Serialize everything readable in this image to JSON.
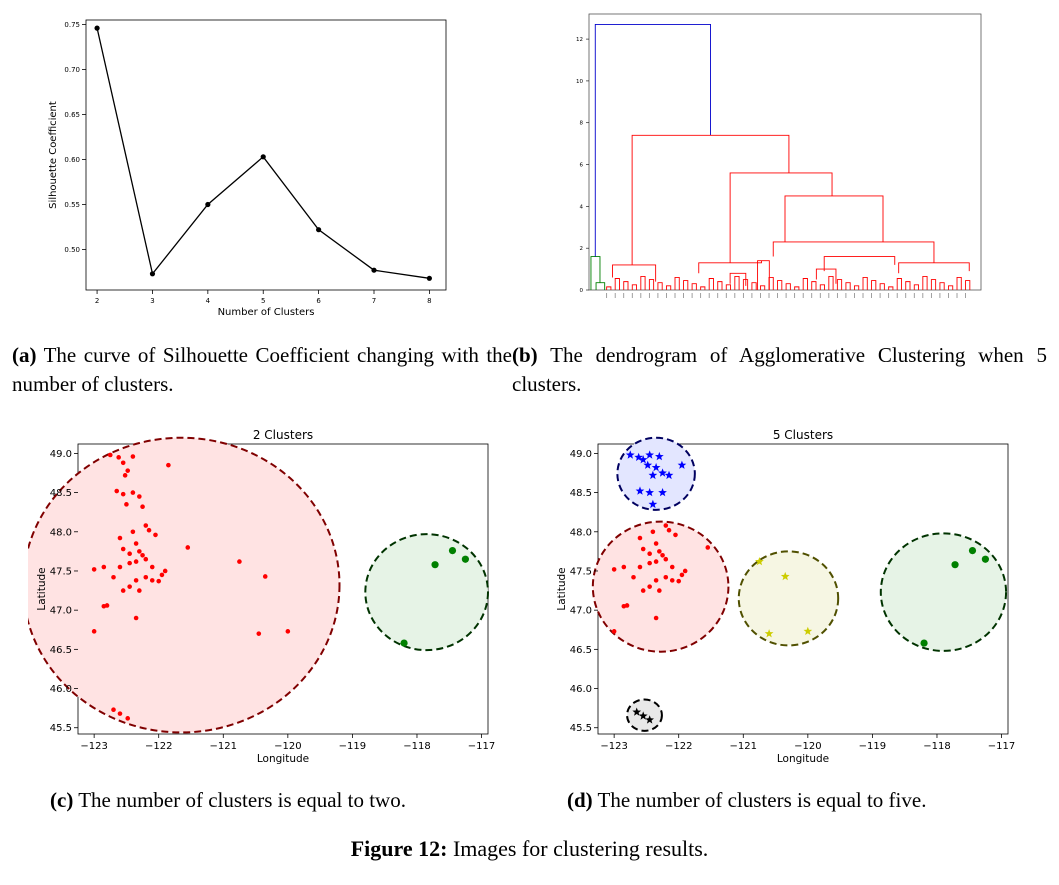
{
  "panel_a": {
    "chart_data": {
      "type": "line",
      "x": [
        2,
        3,
        4,
        5,
        6,
        7,
        8
      ],
      "values": [
        0.746,
        0.473,
        0.55,
        0.603,
        0.522,
        0.477,
        0.468
      ],
      "xlabel": "Number of Clusters",
      "ylabel": "Silhouette Coefficient",
      "xticks": [
        "2",
        "3",
        "4",
        "5",
        "6",
        "7",
        "8"
      ],
      "yticks": [
        "0.50",
        "0.55",
        "0.60",
        "0.65",
        "0.70",
        "0.75"
      ],
      "xlim": [
        1.8,
        8.3
      ],
      "ylim": [
        0.455,
        0.755
      ],
      "line_color": "#000000"
    }
  },
  "panel_b": {
    "chart_data": {
      "type": "dendrogram",
      "yticks": [
        "0",
        "2",
        "4",
        "6",
        "8",
        "10",
        "12"
      ],
      "ylim": [
        0,
        13.2
      ],
      "root_height": 12.7,
      "merge_heights": [
        12.7,
        7.4,
        5.6,
        4.5,
        2.3,
        1.6,
        1.3,
        1.2
      ],
      "colors": {
        "root": "#0000cc",
        "small_cluster": "#008000",
        "main_cluster": "#ff0000"
      }
    }
  },
  "panel_c": {
    "chart_data": {
      "type": "scatter",
      "title": "2 Clusters",
      "xlabel": "Longitude",
      "ylabel": "Latitude",
      "xticks": [
        "−123",
        "−122",
        "−121",
        "−120",
        "−119",
        "−118",
        "−117"
      ],
      "yticks": [
        "45.5",
        "46.0",
        "46.5",
        "47.0",
        "47.5",
        "48.0",
        "48.5",
        "49.0"
      ],
      "xlim": [
        -123.25,
        -116.9
      ],
      "ylim": [
        45.42,
        49.12
      ],
      "series": [
        {
          "color": "#ff0000",
          "marker": "dot",
          "points": [
            [
              -122.75,
              48.98
            ],
            [
              -122.62,
              48.95
            ],
            [
              -122.55,
              48.88
            ],
            [
              -122.48,
              48.78
            ],
            [
              -122.52,
              48.72
            ],
            [
              -122.4,
              48.96
            ],
            [
              -121.85,
              48.85
            ],
            [
              -122.65,
              48.52
            ],
            [
              -122.55,
              48.48
            ],
            [
              -122.4,
              48.5
            ],
            [
              -122.3,
              48.45
            ],
            [
              -122.5,
              48.35
            ],
            [
              -122.25,
              48.32
            ],
            [
              -122.2,
              48.08
            ],
            [
              -122.15,
              48.02
            ],
            [
              -122.4,
              48.0
            ],
            [
              -122.6,
              47.92
            ],
            [
              -122.05,
              47.96
            ],
            [
              -122.35,
              47.85
            ],
            [
              -122.55,
              47.78
            ],
            [
              -122.45,
              47.72
            ],
            [
              -122.3,
              47.75
            ],
            [
              -122.25,
              47.7
            ],
            [
              -122.2,
              47.65
            ],
            [
              -122.35,
              47.62
            ],
            [
              -122.45,
              47.6
            ],
            [
              -122.6,
              47.55
            ],
            [
              -122.1,
              47.55
            ],
            [
              -121.9,
              47.5
            ],
            [
              -121.55,
              47.8
            ],
            [
              -121.95,
              47.45
            ],
            [
              -122.1,
              47.38
            ],
            [
              -122.0,
              47.37
            ],
            [
              -122.2,
              47.42
            ],
            [
              -122.35,
              47.38
            ],
            [
              -122.45,
              47.3
            ],
            [
              -122.55,
              47.25
            ],
            [
              -122.3,
              47.25
            ],
            [
              -122.7,
              47.42
            ],
            [
              -122.85,
              47.55
            ],
            [
              -123.0,
              47.52
            ],
            [
              -122.85,
              47.05
            ],
            [
              -122.8,
              47.06
            ],
            [
              -122.35,
              46.9
            ],
            [
              -123.0,
              46.73
            ],
            [
              -120.75,
              47.62
            ],
            [
              -120.35,
              47.43
            ],
            [
              -120.45,
              46.7
            ],
            [
              -120.0,
              46.73
            ],
            [
              -122.7,
              45.73
            ],
            [
              -122.6,
              45.68
            ],
            [
              -122.48,
              45.62
            ]
          ]
        },
        {
          "color": "#008000",
          "marker": "dot",
          "points": [
            [
              -117.72,
              47.58
            ],
            [
              -117.45,
              47.76
            ],
            [
              -117.25,
              47.65
            ],
            [
              -118.2,
              46.58
            ]
          ]
        }
      ],
      "clusters": [
        {
          "cx": -121.65,
          "cy": 47.32,
          "rx": 2.45,
          "ry": 1.88,
          "fill": "#ffe3e3",
          "stroke": "#800000"
        },
        {
          "cx": -117.85,
          "cy": 47.23,
          "rx": 0.95,
          "ry": 0.74,
          "fill": "#e6f3e6",
          "stroke": "#003300"
        }
      ]
    }
  },
  "panel_d": {
    "chart_data": {
      "type": "scatter",
      "title": "5 Clusters",
      "xlabel": "Longitude",
      "ylabel": "Latitude",
      "xticks": [
        "−123",
        "−122",
        "−121",
        "−120",
        "−119",
        "−118",
        "−117"
      ],
      "yticks": [
        "45.5",
        "46.0",
        "46.5",
        "47.0",
        "47.5",
        "48.0",
        "48.5",
        "49.0"
      ],
      "xlim": [
        -123.25,
        -116.9
      ],
      "ylim": [
        45.42,
        49.12
      ],
      "series": [
        {
          "color": "#0000ff",
          "marker": "star",
          "points": [
            [
              -122.75,
              48.98
            ],
            [
              -122.62,
              48.95
            ],
            [
              -122.55,
              48.92
            ],
            [
              -122.45,
              48.98
            ],
            [
              -122.3,
              48.96
            ],
            [
              -122.48,
              48.85
            ],
            [
              -122.35,
              48.82
            ],
            [
              -122.25,
              48.75
            ],
            [
              -122.4,
              48.72
            ],
            [
              -122.15,
              48.72
            ],
            [
              -121.95,
              48.85
            ],
            [
              -122.6,
              48.52
            ],
            [
              -122.45,
              48.5
            ],
            [
              -122.25,
              48.5
            ],
            [
              -122.4,
              48.35
            ]
          ]
        },
        {
          "color": "#ff0000",
          "marker": "dot",
          "points": [
            [
              -122.2,
              48.08
            ],
            [
              -122.15,
              48.02
            ],
            [
              -122.4,
              48.0
            ],
            [
              -122.6,
              47.92
            ],
            [
              -122.05,
              47.96
            ],
            [
              -122.35,
              47.85
            ],
            [
              -122.55,
              47.78
            ],
            [
              -122.45,
              47.72
            ],
            [
              -122.3,
              47.75
            ],
            [
              -122.25,
              47.7
            ],
            [
              -122.2,
              47.65
            ],
            [
              -122.35,
              47.62
            ],
            [
              -122.45,
              47.6
            ],
            [
              -122.6,
              47.55
            ],
            [
              -122.1,
              47.55
            ],
            [
              -121.9,
              47.5
            ],
            [
              -121.55,
              47.8
            ],
            [
              -121.95,
              47.45
            ],
            [
              -122.1,
              47.38
            ],
            [
              -122.0,
              47.37
            ],
            [
              -122.2,
              47.42
            ],
            [
              -122.35,
              47.38
            ],
            [
              -122.45,
              47.3
            ],
            [
              -122.55,
              47.25
            ],
            [
              -122.3,
              47.25
            ],
            [
              -122.7,
              47.42
            ],
            [
              -122.85,
              47.55
            ],
            [
              -123.0,
              47.52
            ],
            [
              -122.85,
              47.05
            ],
            [
              -122.8,
              47.06
            ],
            [
              -122.35,
              46.9
            ],
            [
              -123.0,
              46.73
            ]
          ]
        },
        {
          "color": "#cccc00",
          "marker": "star",
          "points": [
            [
              -120.75,
              47.62
            ],
            [
              -120.35,
              47.43
            ],
            [
              -120.6,
              46.7
            ],
            [
              -120.0,
              46.73
            ]
          ]
        },
        {
          "color": "#008000",
          "marker": "dot",
          "points": [
            [
              -117.72,
              47.58
            ],
            [
              -117.45,
              47.76
            ],
            [
              -117.25,
              47.65
            ],
            [
              -118.2,
              46.58
            ]
          ]
        },
        {
          "color": "#000000",
          "marker": "star",
          "points": [
            [
              -122.65,
              45.7
            ],
            [
              -122.55,
              45.65
            ],
            [
              -122.45,
              45.6
            ]
          ]
        }
      ],
      "clusters": [
        {
          "cx": -122.35,
          "cy": 48.74,
          "rx": 0.6,
          "ry": 0.46,
          "fill": "#e3e6ff",
          "stroke": "#000060"
        },
        {
          "cx": -122.28,
          "cy": 47.3,
          "rx": 1.05,
          "ry": 0.83,
          "fill": "#ffe3e3",
          "stroke": "#800000"
        },
        {
          "cx": -120.3,
          "cy": 47.15,
          "rx": 0.77,
          "ry": 0.6,
          "fill": "#f6f6e3",
          "stroke": "#505000"
        },
        {
          "cx": -117.9,
          "cy": 47.23,
          "rx": 0.97,
          "ry": 0.75,
          "fill": "#e6f3e6",
          "stroke": "#003300"
        },
        {
          "cx": -122.53,
          "cy": 45.66,
          "rx": 0.27,
          "ry": 0.2,
          "fill": "#e8e8e8",
          "stroke": "#000000"
        }
      ]
    }
  },
  "captions": {
    "a_label": "(a)",
    "a_text": "The curve of Silhouette Coefficient changing with the number of clusters.",
    "b_label": "(b)",
    "b_text": "The dendrogram of Agglomerative Clustering when 5 clusters.",
    "c_label": "(c)",
    "c_text": "The number of clusters is equal to two.",
    "d_label": "(d)",
    "d_text": "The number of clusters is equal to five.",
    "figure_label": "Figure 12:",
    "figure_text": "Images for clustering results."
  }
}
